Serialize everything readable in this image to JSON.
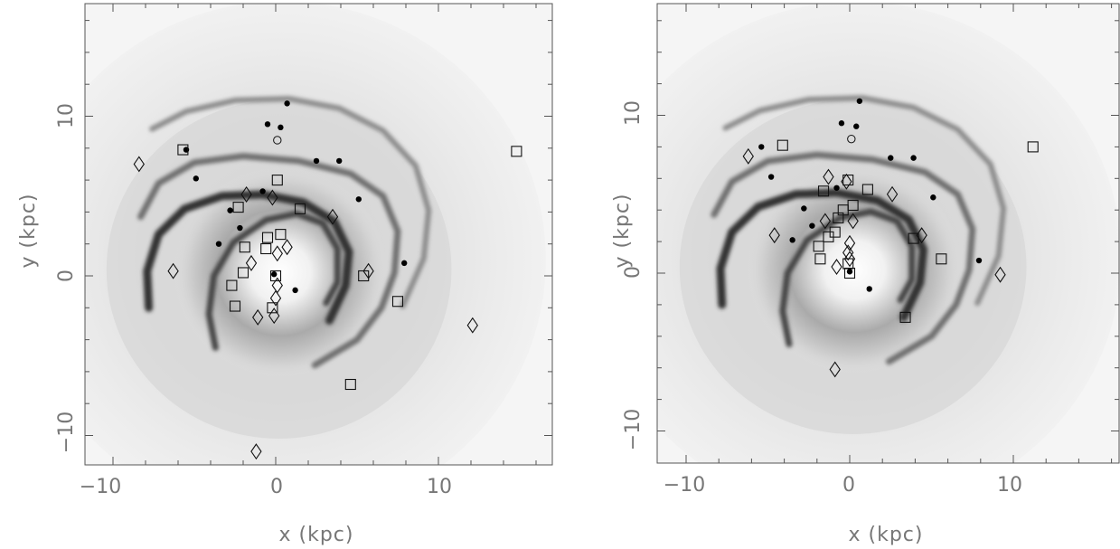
{
  "chart_data": [
    {
      "type": "scatter",
      "title": "",
      "xlabel": "x (kpc)",
      "ylabel": "y (kpc)",
      "xlim": [
        -12,
        17
      ],
      "ylim": [
        -12,
        17
      ],
      "xticks": [
        -10,
        0,
        10
      ],
      "yticks": [
        -10,
        0,
        10
      ],
      "xtick_labels": [
        "−10",
        "0",
        "10"
      ],
      "ytick_labels": [
        "−10",
        "0",
        "10"
      ],
      "grid": false,
      "background": "grayscale spiral-arm model of the Galaxy",
      "series": [
        {
          "marker": "filled-circle",
          "points": [
            [
              0.7,
              10.8
            ],
            [
              -0.5,
              9.5
            ],
            [
              0.3,
              9.3
            ],
            [
              -5.5,
              7.9
            ],
            [
              2.5,
              7.2
            ],
            [
              3.9,
              7.2
            ],
            [
              -4.9,
              6.1
            ],
            [
              -0.8,
              5.3
            ],
            [
              5.1,
              4.8
            ],
            [
              -2.8,
              4.1
            ],
            [
              -2.2,
              3.0
            ],
            [
              -3.5,
              2.0
            ],
            [
              7.9,
              0.8
            ],
            [
              -0.1,
              0.1
            ],
            [
              1.2,
              -0.9
            ]
          ]
        },
        {
          "marker": "open-circle",
          "points": [
            [
              0.1,
              8.5
            ]
          ]
        },
        {
          "marker": "open-square",
          "points": [
            [
              14.8,
              7.8
            ],
            [
              -5.7,
              7.9
            ],
            [
              0.1,
              6.0
            ],
            [
              1.5,
              4.2
            ],
            [
              -2.3,
              4.3
            ],
            [
              -1.9,
              1.8
            ],
            [
              0.3,
              2.6
            ],
            [
              -0.5,
              2.4
            ],
            [
              -0.6,
              1.7
            ],
            [
              -2.0,
              0.2
            ],
            [
              5.4,
              0.0
            ],
            [
              -2.7,
              -0.6
            ],
            [
              -2.5,
              -1.9
            ],
            [
              7.5,
              -1.6
            ],
            [
              -0.2,
              -2.0
            ],
            [
              4.6,
              -6.8
            ],
            [
              0.0,
              0.0
            ]
          ]
        },
        {
          "marker": "open-diamond",
          "points": [
            [
              -8.4,
              7.0
            ],
            [
              -1.8,
              5.1
            ],
            [
              -0.2,
              4.9
            ],
            [
              3.5,
              3.7
            ],
            [
              0.1,
              1.4
            ],
            [
              0.7,
              1.8
            ],
            [
              -1.5,
              0.8
            ],
            [
              -6.3,
              0.3
            ],
            [
              5.7,
              0.3
            ],
            [
              0.1,
              -0.6
            ],
            [
              0.0,
              -1.4
            ],
            [
              -1.1,
              -2.6
            ],
            [
              -0.1,
              -2.5
            ],
            [
              12.1,
              -3.1
            ],
            [
              -1.2,
              -11.0
            ]
          ]
        }
      ]
    },
    {
      "type": "scatter",
      "title": "",
      "xlabel": "x (kpc)",
      "ylabel": "y (kpc)",
      "xlim": [
        -12,
        17
      ],
      "ylim": [
        -12,
        17
      ],
      "xticks": [
        -10,
        0,
        10
      ],
      "yticks": [
        -10,
        0,
        10
      ],
      "xtick_labels": [
        "−10",
        "0",
        "10"
      ],
      "ytick_labels": [
        "−10",
        "0",
        "10"
      ],
      "grid": false,
      "background": "grayscale spiral-arm model of the Galaxy",
      "series": [
        {
          "marker": "filled-circle",
          "points": [
            [
              0.6,
              10.9
            ],
            [
              -0.5,
              9.5
            ],
            [
              0.4,
              9.3
            ],
            [
              -5.4,
              8.0
            ],
            [
              2.5,
              7.3
            ],
            [
              3.9,
              7.3
            ],
            [
              -4.8,
              6.1
            ],
            [
              -0.8,
              5.4
            ],
            [
              5.1,
              4.8
            ],
            [
              -2.8,
              4.1
            ],
            [
              -2.3,
              3.0
            ],
            [
              -3.5,
              2.1
            ],
            [
              7.9,
              0.8
            ],
            [
              0.0,
              0.1
            ],
            [
              1.2,
              -1.0
            ]
          ]
        },
        {
          "marker": "open-circle",
          "points": [
            [
              0.1,
              8.5
            ]
          ]
        },
        {
          "marker": "open-square",
          "points": [
            [
              11.2,
              8.0
            ],
            [
              -4.1,
              8.1
            ],
            [
              -0.1,
              5.9
            ],
            [
              1.1,
              5.3
            ],
            [
              -1.6,
              5.2
            ],
            [
              0.2,
              4.3
            ],
            [
              -0.4,
              4.0
            ],
            [
              -0.7,
              3.5
            ],
            [
              -0.9,
              2.6
            ],
            [
              -1.3,
              2.3
            ],
            [
              -1.9,
              1.7
            ],
            [
              3.9,
              2.2
            ],
            [
              -1.8,
              0.9
            ],
            [
              5.6,
              0.9
            ],
            [
              -0.1,
              0.6
            ],
            [
              3.4,
              -2.8
            ],
            [
              0.0,
              0.0
            ]
          ]
        },
        {
          "marker": "open-diamond",
          "points": [
            [
              -6.2,
              7.4
            ],
            [
              -1.3,
              6.1
            ],
            [
              -0.2,
              5.8
            ],
            [
              2.6,
              5.0
            ],
            [
              -1.5,
              3.3
            ],
            [
              0.2,
              3.3
            ],
            [
              -4.6,
              2.4
            ],
            [
              4.4,
              2.4
            ],
            [
              0.0,
              1.9
            ],
            [
              -0.1,
              1.3
            ],
            [
              0.0,
              0.9
            ],
            [
              -0.8,
              0.4
            ],
            [
              9.2,
              -0.1
            ],
            [
              -0.9,
              -6.1
            ]
          ]
        }
      ]
    }
  ]
}
